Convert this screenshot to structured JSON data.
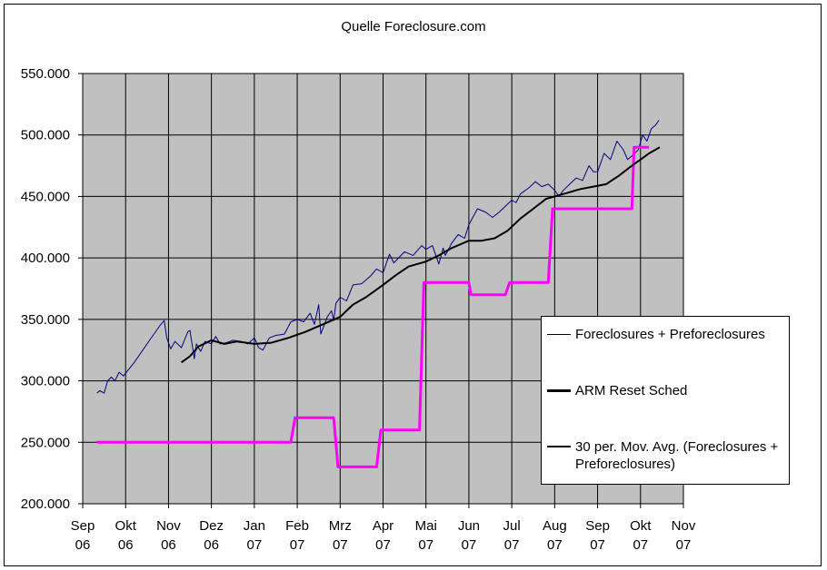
{
  "chart_data": {
    "type": "line",
    "title": "Quelle Foreclosure.com",
    "xlabel": "",
    "ylabel": "",
    "ylim": [
      200000,
      550000
    ],
    "y_ticks": [
      200000,
      250000,
      300000,
      350000,
      400000,
      450000,
      500000,
      550000
    ],
    "y_tick_labels": [
      "200.000",
      "250.000",
      "300.000",
      "350.000",
      "400.000",
      "450.000",
      "500.000",
      "550.000"
    ],
    "x_tick_labels": [
      [
        "Sep",
        "06"
      ],
      [
        "Okt",
        "06"
      ],
      [
        "Nov",
        "06"
      ],
      [
        "Dez",
        "06"
      ],
      [
        "Jan",
        "07"
      ],
      [
        "Feb",
        "07"
      ],
      [
        "Mrz",
        "07"
      ],
      [
        "Apr",
        "07"
      ],
      [
        "Mai",
        "07"
      ],
      [
        "Jun",
        "07"
      ],
      [
        "Jul",
        "07"
      ],
      [
        "Aug",
        "07"
      ],
      [
        "Sep",
        "07"
      ],
      [
        "Okt",
        "07"
      ],
      [
        "Nov",
        "07"
      ]
    ],
    "x_unit": "month index (0 = Sep 06)",
    "xlim": [
      0,
      14
    ],
    "grid": true,
    "plot_background": "#c0c0c0",
    "legend_position": "right",
    "series": [
      {
        "name": "Foreclosures + Preforeclosures",
        "color": "#000080",
        "x": [
          0.33,
          0.4,
          0.5,
          0.58,
          0.67,
          0.75,
          0.85,
          0.95,
          1.2,
          1.5,
          1.8,
          1.9,
          1.96,
          2.05,
          2.15,
          2.3,
          2.45,
          2.5,
          2.6,
          2.65,
          2.75,
          2.85,
          3.0,
          3.1,
          3.2,
          3.35,
          3.5,
          3.7,
          3.85,
          4.0,
          4.1,
          4.2,
          4.35,
          4.5,
          4.7,
          4.85,
          5.0,
          5.15,
          5.3,
          5.4,
          5.5,
          5.55,
          5.7,
          5.8,
          5.85,
          5.9,
          6.0,
          6.15,
          6.3,
          6.5,
          6.7,
          6.85,
          7.0,
          7.15,
          7.25,
          7.5,
          7.7,
          7.9,
          8.0,
          8.15,
          8.3,
          8.4,
          8.45,
          8.5,
          8.6,
          8.75,
          8.9,
          9.0,
          9.2,
          9.4,
          9.55,
          9.7,
          9.85,
          10.0,
          10.1,
          10.2,
          10.4,
          10.55,
          10.7,
          10.85,
          11.0,
          11.1,
          11.2,
          11.35,
          11.5,
          11.65,
          11.8,
          11.9,
          12.0,
          12.15,
          12.3,
          12.45,
          12.6,
          12.7,
          12.8,
          12.95,
          13.05,
          13.15,
          13.25,
          13.35,
          13.43
        ],
        "y": [
          290000,
          292000,
          290000,
          300000,
          303000,
          300000,
          307000,
          304000,
          315000,
          330000,
          345000,
          349000,
          335000,
          326000,
          332000,
          327000,
          340000,
          341000,
          318000,
          330000,
          324000,
          332000,
          330000,
          336000,
          330000,
          331000,
          333000,
          332000,
          330000,
          335000,
          327000,
          325000,
          335000,
          337000,
          338000,
          348000,
          350000,
          348000,
          355000,
          346000,
          362000,
          338000,
          352000,
          357000,
          349000,
          363000,
          368000,
          365000,
          378000,
          379000,
          385000,
          391000,
          388000,
          403000,
          396000,
          405000,
          402000,
          410000,
          407000,
          410000,
          395000,
          408000,
          402000,
          405000,
          412000,
          419000,
          416000,
          427000,
          440000,
          437000,
          433000,
          437000,
          442000,
          447000,
          445000,
          452000,
          457000,
          462000,
          458000,
          460000,
          455000,
          450000,
          455000,
          460000,
          465000,
          463000,
          475000,
          470000,
          470000,
          485000,
          480000,
          495000,
          488000,
          480000,
          483000,
          488000,
          500000,
          495000,
          505000,
          508000,
          512000
        ]
      },
      {
        "name": "ARM Reset Sched",
        "color": "#ff00ff",
        "x": [
          0.33,
          4.85,
          4.95,
          5.85,
          5.95,
          6.85,
          6.95,
          7.85,
          7.95,
          8.75,
          8.85,
          9.0,
          9.05,
          9.85,
          9.95,
          10.85,
          10.95,
          12.8,
          12.85,
          13.2
        ],
        "y": [
          250000,
          250000,
          270000,
          270000,
          230000,
          230000,
          260000,
          260000,
          380000,
          380000,
          380000,
          380000,
          370000,
          370000,
          380000,
          380000,
          440000,
          440000,
          490000,
          490000
        ]
      },
      {
        "name": "30 per. Mov. Avg. (Foreclosures + Preforeclosures)",
        "color": "#000000",
        "x": [
          2.3,
          2.5,
          2.7,
          3.0,
          3.3,
          3.6,
          4.0,
          4.4,
          4.8,
          5.2,
          5.6,
          6.0,
          6.3,
          6.6,
          7.0,
          7.3,
          7.6,
          8.0,
          8.3,
          8.6,
          9.0,
          9.3,
          9.6,
          9.9,
          10.2,
          10.5,
          10.8,
          11.0,
          11.3,
          11.6,
          11.9,
          12.2,
          12.5,
          12.8,
          13.0,
          13.2,
          13.45
        ],
        "y": [
          315000,
          320000,
          328000,
          333000,
          330000,
          332000,
          330000,
          331000,
          335000,
          340000,
          346000,
          352000,
          362000,
          368000,
          378000,
          386000,
          393000,
          397000,
          402000,
          408000,
          414000,
          414000,
          416000,
          422000,
          432000,
          440000,
          448000,
          450000,
          453000,
          456000,
          458000,
          460000,
          467000,
          475000,
          480000,
          485000,
          490000
        ]
      }
    ]
  }
}
